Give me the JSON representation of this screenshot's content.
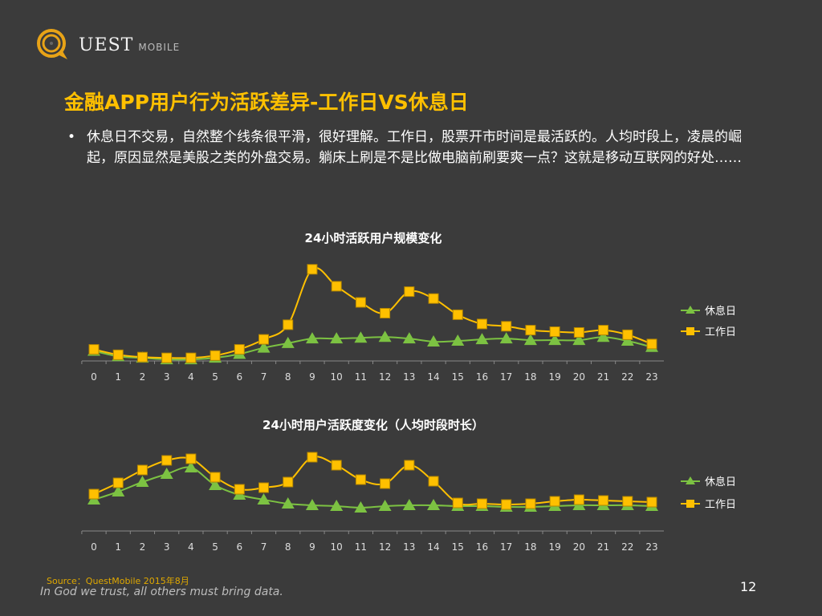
{
  "header": {
    "logo_text": "UEST",
    "logo_sub": "MOBILE",
    "title": "金融APP用户行为活跃差异-工作日VS休息日"
  },
  "body": {
    "bullet": "休息日不交易，自然整个线条很平滑，很好理解。工作日，股票开市时间是最活跃的。人均时段上，凌晨的崛起，原因显然是美股之类的外盘交易。躺床上刷是不是比做电脑前刷要爽一点？这就是移动互联网的好处……"
  },
  "footer": {
    "source": "Source：QuestMobile   2015年8月",
    "motto": "In God we trust, all others must bring data.",
    "page": "12"
  },
  "colors": {
    "background": "#3b3b3b",
    "accent": "#ffc000",
    "rest": "#7cc242",
    "work": "#ffc000"
  },
  "chart_data": [
    {
      "type": "line",
      "title": "24小时活跃用户规模变化",
      "categories": [
        "0",
        "1",
        "2",
        "3",
        "4",
        "5",
        "6",
        "7",
        "8",
        "9",
        "10",
        "11",
        "12",
        "13",
        "14",
        "15",
        "16",
        "17",
        "18",
        "19",
        "20",
        "21",
        "22",
        "23"
      ],
      "ylim": [
        0,
        125
      ],
      "grid": false,
      "legend": "right",
      "series": [
        {
          "name": "休息日",
          "marker": "triangle",
          "color": "#7cc242",
          "values": [
            13,
            6,
            4,
            2,
            2,
            4,
            9,
            17,
            23,
            29,
            29,
            30,
            31,
            29,
            25,
            26,
            28,
            29,
            27,
            27,
            27,
            31,
            26,
            18
          ]
        },
        {
          "name": "工作日",
          "marker": "square",
          "color": "#ffc000",
          "values": [
            15,
            8,
            5,
            4,
            4,
            7,
            15,
            28,
            47,
            119,
            97,
            76,
            62,
            90,
            81,
            60,
            48,
            45,
            40,
            38,
            37,
            40,
            34,
            22
          ]
        }
      ]
    },
    {
      "type": "line",
      "title": "24小时用户活跃度变化（人均时段时长）",
      "categories": [
        "0",
        "1",
        "2",
        "3",
        "4",
        "5",
        "6",
        "7",
        "8",
        "9",
        "10",
        "11",
        "12",
        "13",
        "14",
        "15",
        "16",
        "17",
        "18",
        "19",
        "20",
        "21",
        "22",
        "23"
      ],
      "ylim": [
        0,
        100
      ],
      "grid": false,
      "legend": "right",
      "series": [
        {
          "name": "休息日",
          "marker": "triangle",
          "color": "#7cc242",
          "values": [
            39,
            49,
            61,
            71,
            79,
            57,
            45,
            39,
            34,
            32,
            31,
            29,
            31,
            32,
            32,
            31,
            31,
            30,
            30,
            31,
            32,
            32,
            32,
            31
          ]
        },
        {
          "name": "工作日",
          "marker": "square",
          "color": "#ffc000",
          "values": [
            46,
            60,
            76,
            88,
            90,
            67,
            52,
            54,
            61,
            92,
            82,
            64,
            59,
            82,
            62,
            35,
            34,
            33,
            34,
            37,
            39,
            38,
            37,
            36
          ]
        }
      ]
    }
  ]
}
